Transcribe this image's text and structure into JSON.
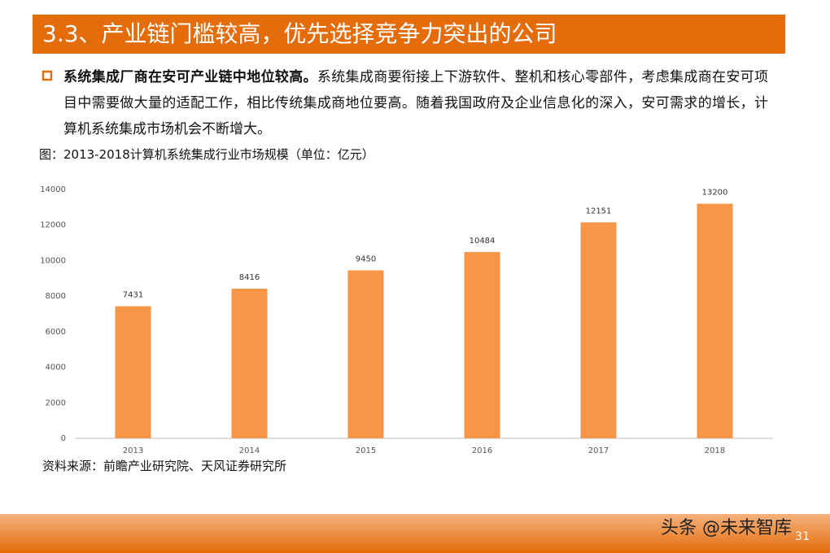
{
  "header": {
    "title": "3.3、产业链门槛较高，优先选择竞争力突出的公司"
  },
  "bullet": {
    "lead": "系统集成厂商在安可产业链中地位较高。",
    "text": "系统集成商要衔接上下游软件、整机和核心零部件，考虑集成商在安可项目中需要做大量的适配工作，相比传统集成商地位要高。随着我国政府及企业信息化的深入，安可需求的增长，计算机系统集成市场机会不断增大。"
  },
  "caption": "图：2013-2018计算机系统集成行业市场规模（单位：亿元）",
  "source": "资料来源：前瞻产业研究院、天风证券研究所",
  "footer": {
    "watermark": "头条 @未来智库",
    "page": "31"
  },
  "chart_data": {
    "type": "bar",
    "categories": [
      "2013",
      "2014",
      "2015",
      "2016",
      "2017",
      "2018"
    ],
    "values": [
      7431,
      8416,
      9450,
      10484,
      12151,
      13200
    ],
    "color": "#f79646",
    "ylim": [
      0,
      14000
    ],
    "yticks": [
      0,
      2000,
      4000,
      6000,
      8000,
      10000,
      12000,
      14000
    ],
    "grid": false
  }
}
